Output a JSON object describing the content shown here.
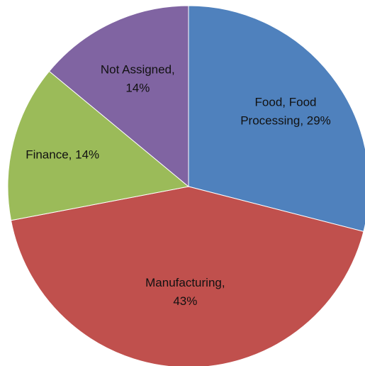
{
  "chart_data": {
    "type": "pie",
    "title": "",
    "start_angle_deg": 0,
    "direction": "clockwise",
    "slices": [
      {
        "category": "Food, Food Processing",
        "value": 29,
        "label_lines": [
          "Food, Food",
          "Processing, 29%"
        ],
        "color": "#4F81BD"
      },
      {
        "category": "Manufacturing",
        "value": 43,
        "label_lines": [
          "Manufacturing,",
          "43%"
        ],
        "color": "#C0504D"
      },
      {
        "category": "Finance",
        "value": 14,
        "label_lines": [
          "Finance, 14%"
        ],
        "color": "#9BBB59"
      },
      {
        "category": "Not Assigned",
        "value": 14,
        "label_lines": [
          "Not Assigned,",
          "14%"
        ],
        "color": "#8064A2"
      }
    ]
  }
}
